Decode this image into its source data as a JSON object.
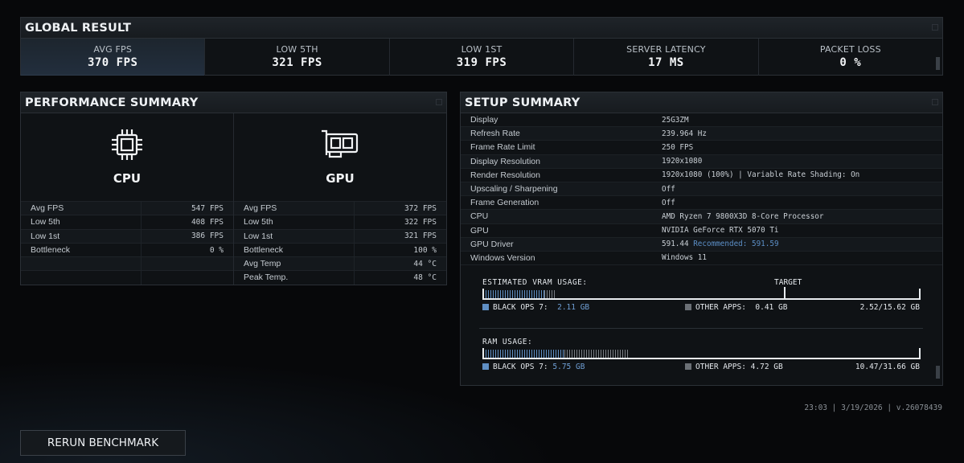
{
  "global_result": {
    "title": "GLOBAL RESULT",
    "stats": [
      {
        "label": "AVG FPS",
        "value": "370 FPS"
      },
      {
        "label": "LOW 5TH",
        "value": "321 FPS"
      },
      {
        "label": "LOW 1ST",
        "value": "319 FPS"
      },
      {
        "label": "SERVER LATENCY",
        "value": "17 MS"
      },
      {
        "label": "PACKET LOSS",
        "value": "0 %"
      }
    ]
  },
  "performance_summary": {
    "title": "PERFORMANCE SUMMARY",
    "cpu": {
      "name": "CPU",
      "icon": "cpu-chip-icon",
      "metrics": [
        {
          "label": "Avg FPS",
          "value": "547 FPS"
        },
        {
          "label": "Low 5th",
          "value": "408 FPS"
        },
        {
          "label": "Low 1st",
          "value": "386 FPS"
        },
        {
          "label": "Bottleneck",
          "value": "0 %"
        }
      ]
    },
    "gpu": {
      "name": "GPU",
      "icon": "graphics-card-icon",
      "metrics": [
        {
          "label": "Avg FPS",
          "value": "372 FPS"
        },
        {
          "label": "Low 5th",
          "value": "322 FPS"
        },
        {
          "label": "Low 1st",
          "value": "321 FPS"
        },
        {
          "label": "Bottleneck",
          "value": "100 %"
        },
        {
          "label": "Avg Temp",
          "value": "44 °C"
        },
        {
          "label": "Peak Temp.",
          "value": "48 °C"
        }
      ]
    }
  },
  "setup_summary": {
    "title": "SETUP SUMMARY",
    "rows": [
      {
        "label": "Display",
        "value": "25G3ZM"
      },
      {
        "label": "Refresh Rate",
        "value": "239.964 Hz"
      },
      {
        "label": "Frame Rate Limit",
        "value": "250 FPS"
      },
      {
        "label": "Display Resolution",
        "value": "1920x1080"
      },
      {
        "label": "Render Resolution",
        "value": "1920x1080 (100%) | Variable Rate Shading: On"
      },
      {
        "label": "Upscaling / Sharpening",
        "value": "Off"
      },
      {
        "label": "Frame Generation",
        "value": "Off"
      },
      {
        "label": "CPU",
        "value": "AMD Ryzen 7 9800X3D 8-Core Processor"
      },
      {
        "label": "GPU",
        "value": "NVIDIA GeForce RTX 5070 Ti"
      },
      {
        "label": "GPU Driver",
        "value": "591.44",
        "recommended": "Recommended: 591.59"
      },
      {
        "label": "Windows Version",
        "value": "Windows 11"
      }
    ],
    "vram": {
      "title": "ESTIMATED VRAM USAGE:",
      "target_label": "TARGET",
      "game_label": "BLACK OPS 7:",
      "game_value": "2.11 GB",
      "other_label": "OTHER APPS:",
      "other_value": "0.41 GB",
      "total": "2.52/15.62 GB",
      "game_fraction": 0.135,
      "other_fraction": 0.026,
      "target_fraction": 0.69
    },
    "ram": {
      "title": "RAM USAGE:",
      "game_label": "BLACK OPS 7:",
      "game_value": "5.75 GB",
      "other_label": "OTHER APPS:",
      "other_value": "4.72 GB",
      "total": "10.47/31.66 GB",
      "game_fraction": 0.182,
      "other_fraction": 0.149
    }
  },
  "footer": {
    "version_info": "23:03 | 3/19/2026 | v.26078439",
    "rerun_label": "RERUN BENCHMARK"
  },
  "colors": {
    "accent_blue": "#5f8fc4",
    "other_grey": "#6b7076",
    "panel_bg": "#0f1215"
  }
}
